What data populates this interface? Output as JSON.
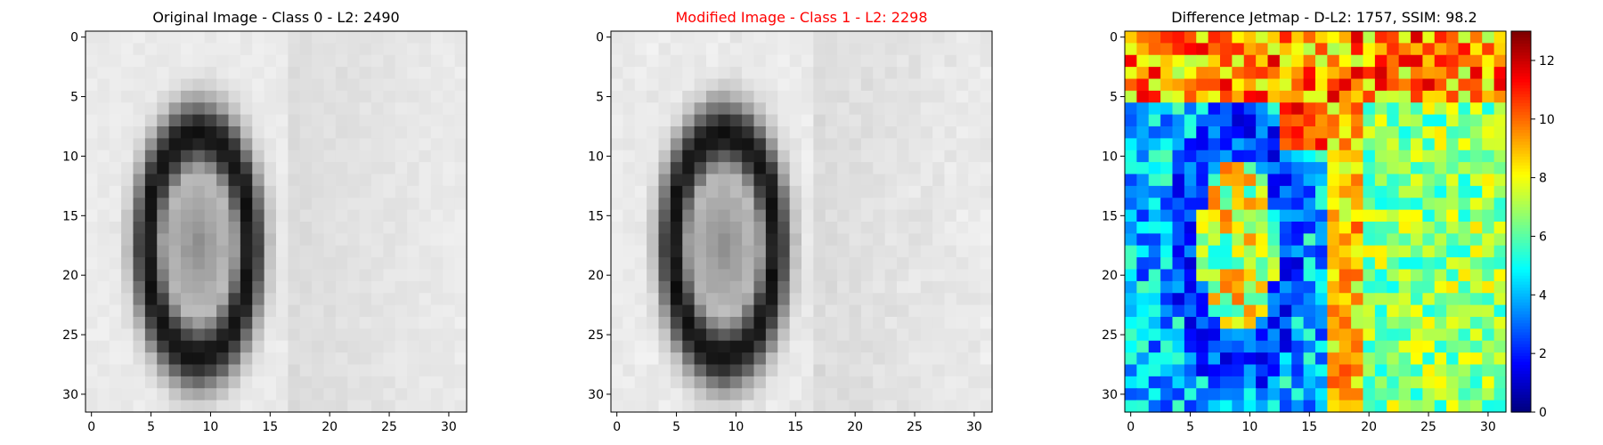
{
  "chart_data": [
    {
      "type": "heatmap",
      "title": "Original Image - Class 0 - L2: 2490",
      "title_color": "#000000",
      "colormap": "gray",
      "grid_size": [
        32,
        32
      ],
      "xlim": [
        0,
        31
      ],
      "ylim": [
        0,
        31
      ],
      "xticks": [
        0,
        5,
        10,
        15,
        20,
        25,
        30
      ],
      "yticks": [
        0,
        5,
        10,
        15,
        20,
        25,
        30
      ],
      "description": "Digit zero: dark elliptical ring centred near column 9, rows 4-31, light background"
    },
    {
      "type": "heatmap",
      "title": "Modified Image - Class 1 - L2: 2298",
      "title_color": "#ff0000",
      "colormap": "gray",
      "grid_size": [
        32,
        32
      ],
      "xlim": [
        0,
        31
      ],
      "ylim": [
        0,
        31
      ],
      "xticks": [
        0,
        5,
        10,
        15,
        20,
        25,
        30
      ],
      "yticks": [
        0,
        5,
        10,
        15,
        20,
        25,
        30
      ]
    },
    {
      "type": "heatmap",
      "title": "Difference Jetmap - D-L2: 1757, SSIM: 98.2",
      "title_color": "#000000",
      "colormap": "jet",
      "grid_size": [
        32,
        32
      ],
      "xlim": [
        0,
        31
      ],
      "ylim": [
        0,
        31
      ],
      "xticks": [
        0,
        5,
        10,
        15,
        20,
        25,
        30
      ],
      "yticks": [
        0,
        5,
        10,
        15,
        20,
        25,
        30
      ],
      "colorbar": {
        "min": 0,
        "max": 13,
        "ticks": [
          0,
          2,
          4,
          6,
          8,
          10,
          12
        ]
      }
    }
  ]
}
